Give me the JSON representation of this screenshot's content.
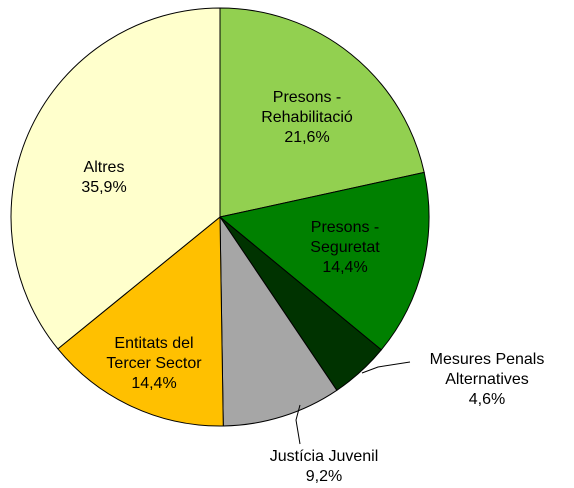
{
  "chart_data": {
    "type": "pie",
    "categories": [
      "Presons - Rehabilitació",
      "Presons - Seguretat",
      "Mesures Penals Alternatives",
      "Justícia Juvenil",
      "Entitats del Tercer Sector",
      "Altres"
    ],
    "values": [
      21.6,
      14.4,
      4.6,
      9.2,
      14.4,
      35.9
    ],
    "value_labels": [
      "21,6%",
      "14,4%",
      "4,6%",
      "9,2%",
      "14,4%",
      "35,9%"
    ],
    "colors": [
      "#92d050",
      "#008000",
      "#003300",
      "#a6a6a6",
      "#ffc000",
      "#ffffcc"
    ]
  }
}
